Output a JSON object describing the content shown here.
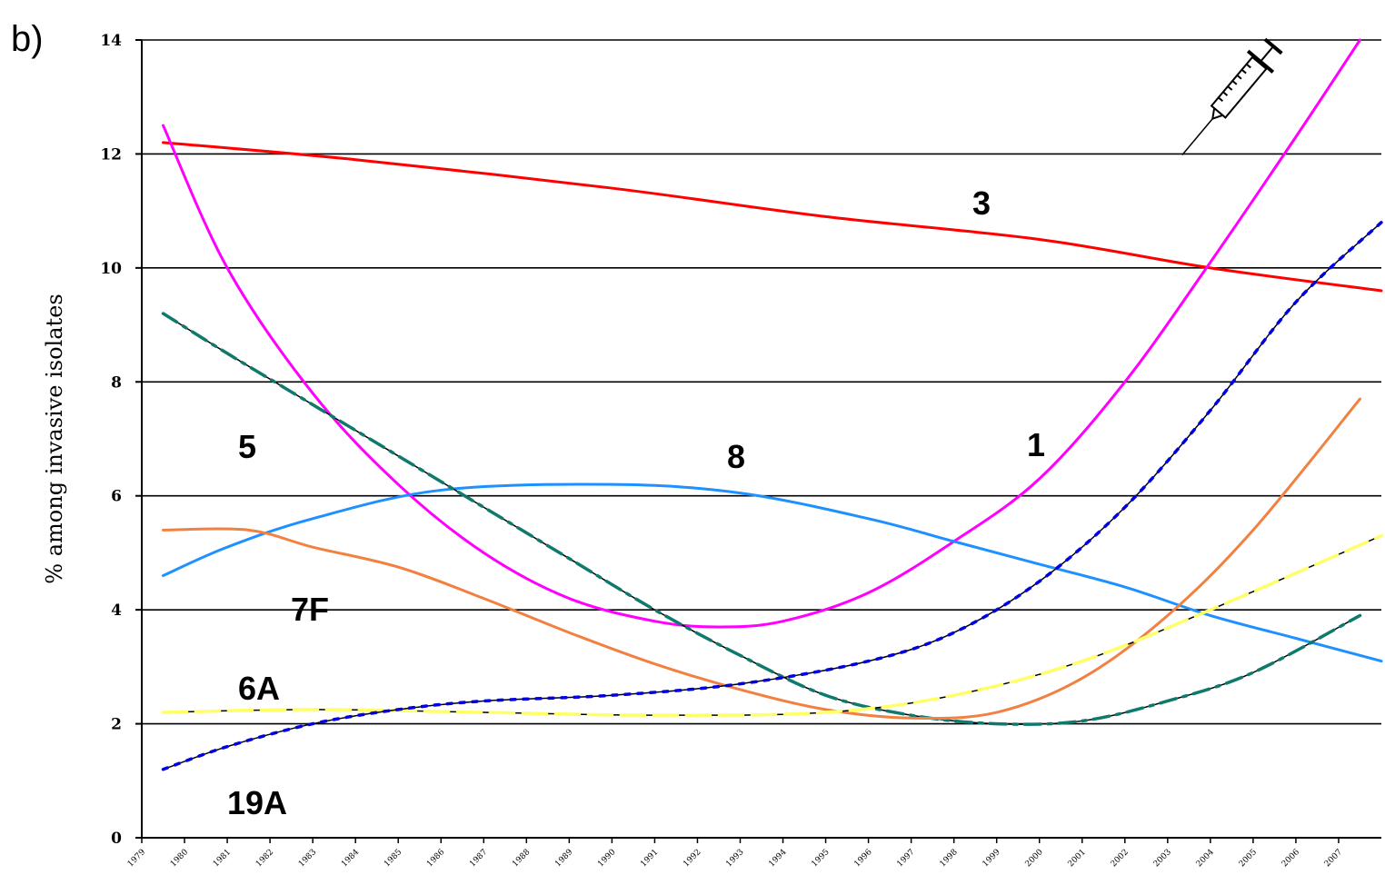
{
  "chart_data": {
    "type": "line",
    "panel_label": "b)",
    "ylabel": "% among invasive isolates",
    "xlabel": "",
    "ylim": [
      0,
      14
    ],
    "yticks": [
      "0",
      "2",
      "4",
      "6",
      "8",
      "10",
      "12",
      "14"
    ],
    "xlim": [
      1979,
      2008
    ],
    "xticks": [
      "1979",
      "1980",
      "1981",
      "1982",
      "1983",
      "1984",
      "1985",
      "1986",
      "1987",
      "1988",
      "1989",
      "1990",
      "1991",
      "1992",
      "1993",
      "1994",
      "1995",
      "1996",
      "1997",
      "1998",
      "1999",
      "2000",
      "2001",
      "2002",
      "2003",
      "2004",
      "2005",
      "2006",
      "2007"
    ],
    "grid": "horizontal",
    "legend": "none",
    "annotation_icon": "syringe-icon",
    "series": [
      {
        "name": "3",
        "label": "3",
        "color": "#ff0000",
        "style": "solid",
        "x": [
          1979.5,
          1984,
          1990,
          1995,
          2000,
          2004,
          2008
        ],
        "y": [
          12.2,
          11.9,
          11.4,
          10.9,
          10.5,
          10.0,
          9.6
        ]
      },
      {
        "name": "1",
        "label": "1",
        "color": "#ff00ff",
        "style": "solid",
        "x": [
          1979.5,
          1981,
          1983,
          1985,
          1987,
          1989,
          1991,
          1992.5,
          1994,
          1996,
          1998,
          2000,
          2002,
          2004,
          2006,
          2007.5
        ],
        "y": [
          12.5,
          10.0,
          7.8,
          6.2,
          5.0,
          4.2,
          3.8,
          3.7,
          3.8,
          4.3,
          5.2,
          6.3,
          8.0,
          10.1,
          12.3,
          14.0
        ]
      },
      {
        "name": "8",
        "label": "8",
        "color": "#1e90ff",
        "style": "solid",
        "x": [
          1979.5,
          1981,
          1983,
          1986,
          1990,
          1993,
          1996,
          1998,
          2000,
          2002,
          2004,
          2006,
          2008
        ],
        "y": [
          4.6,
          5.1,
          5.6,
          6.1,
          6.2,
          6.05,
          5.6,
          5.2,
          4.8,
          4.4,
          3.9,
          3.5,
          3.1
        ]
      },
      {
        "name": "5",
        "label": "5",
        "color": "#0f7a6c",
        "style": "dashdot",
        "x": [
          1979.5,
          1981,
          1983,
          1985,
          1987,
          1989,
          1991,
          1993,
          1995,
          1997,
          1999,
          2001,
          2003,
          2005,
          2007.5
        ],
        "y": [
          9.2,
          8.5,
          7.6,
          6.7,
          5.8,
          4.9,
          4.0,
          3.2,
          2.5,
          2.15,
          2.0,
          2.05,
          2.4,
          2.9,
          3.9
        ]
      },
      {
        "name": "7F",
        "label": "7F",
        "color": "#f28040",
        "style": "solid",
        "x": [
          1979.5,
          1981.5,
          1983,
          1985,
          1987,
          1989,
          1991,
          1993,
          1995,
          1997,
          1999,
          2001,
          2003,
          2005,
          2007.5
        ],
        "y": [
          5.4,
          5.4,
          5.1,
          4.75,
          4.2,
          3.6,
          3.05,
          2.6,
          2.25,
          2.1,
          2.2,
          2.8,
          3.9,
          5.4,
          7.7
        ]
      },
      {
        "name": "6A",
        "label": "6A",
        "color": "#ffff66",
        "style": "dashed",
        "x": [
          1979.5,
          1983,
          1987,
          1991,
          1995,
          1998,
          2001,
          2004,
          2008
        ],
        "y": [
          2.2,
          2.25,
          2.2,
          2.15,
          2.2,
          2.5,
          3.1,
          4.0,
          5.3
        ]
      },
      {
        "name": "19A",
        "label": "19A",
        "color": "#0000e0",
        "style": "dotted",
        "x": [
          1979.5,
          1981,
          1983,
          1985,
          1987,
          1990,
          1993,
          1996,
          1998,
          2000,
          2002,
          2004,
          2006,
          2008
        ],
        "y": [
          1.2,
          1.6,
          2.0,
          2.25,
          2.4,
          2.5,
          2.7,
          3.1,
          3.6,
          4.5,
          5.8,
          7.5,
          9.4,
          10.8
        ]
      }
    ]
  }
}
